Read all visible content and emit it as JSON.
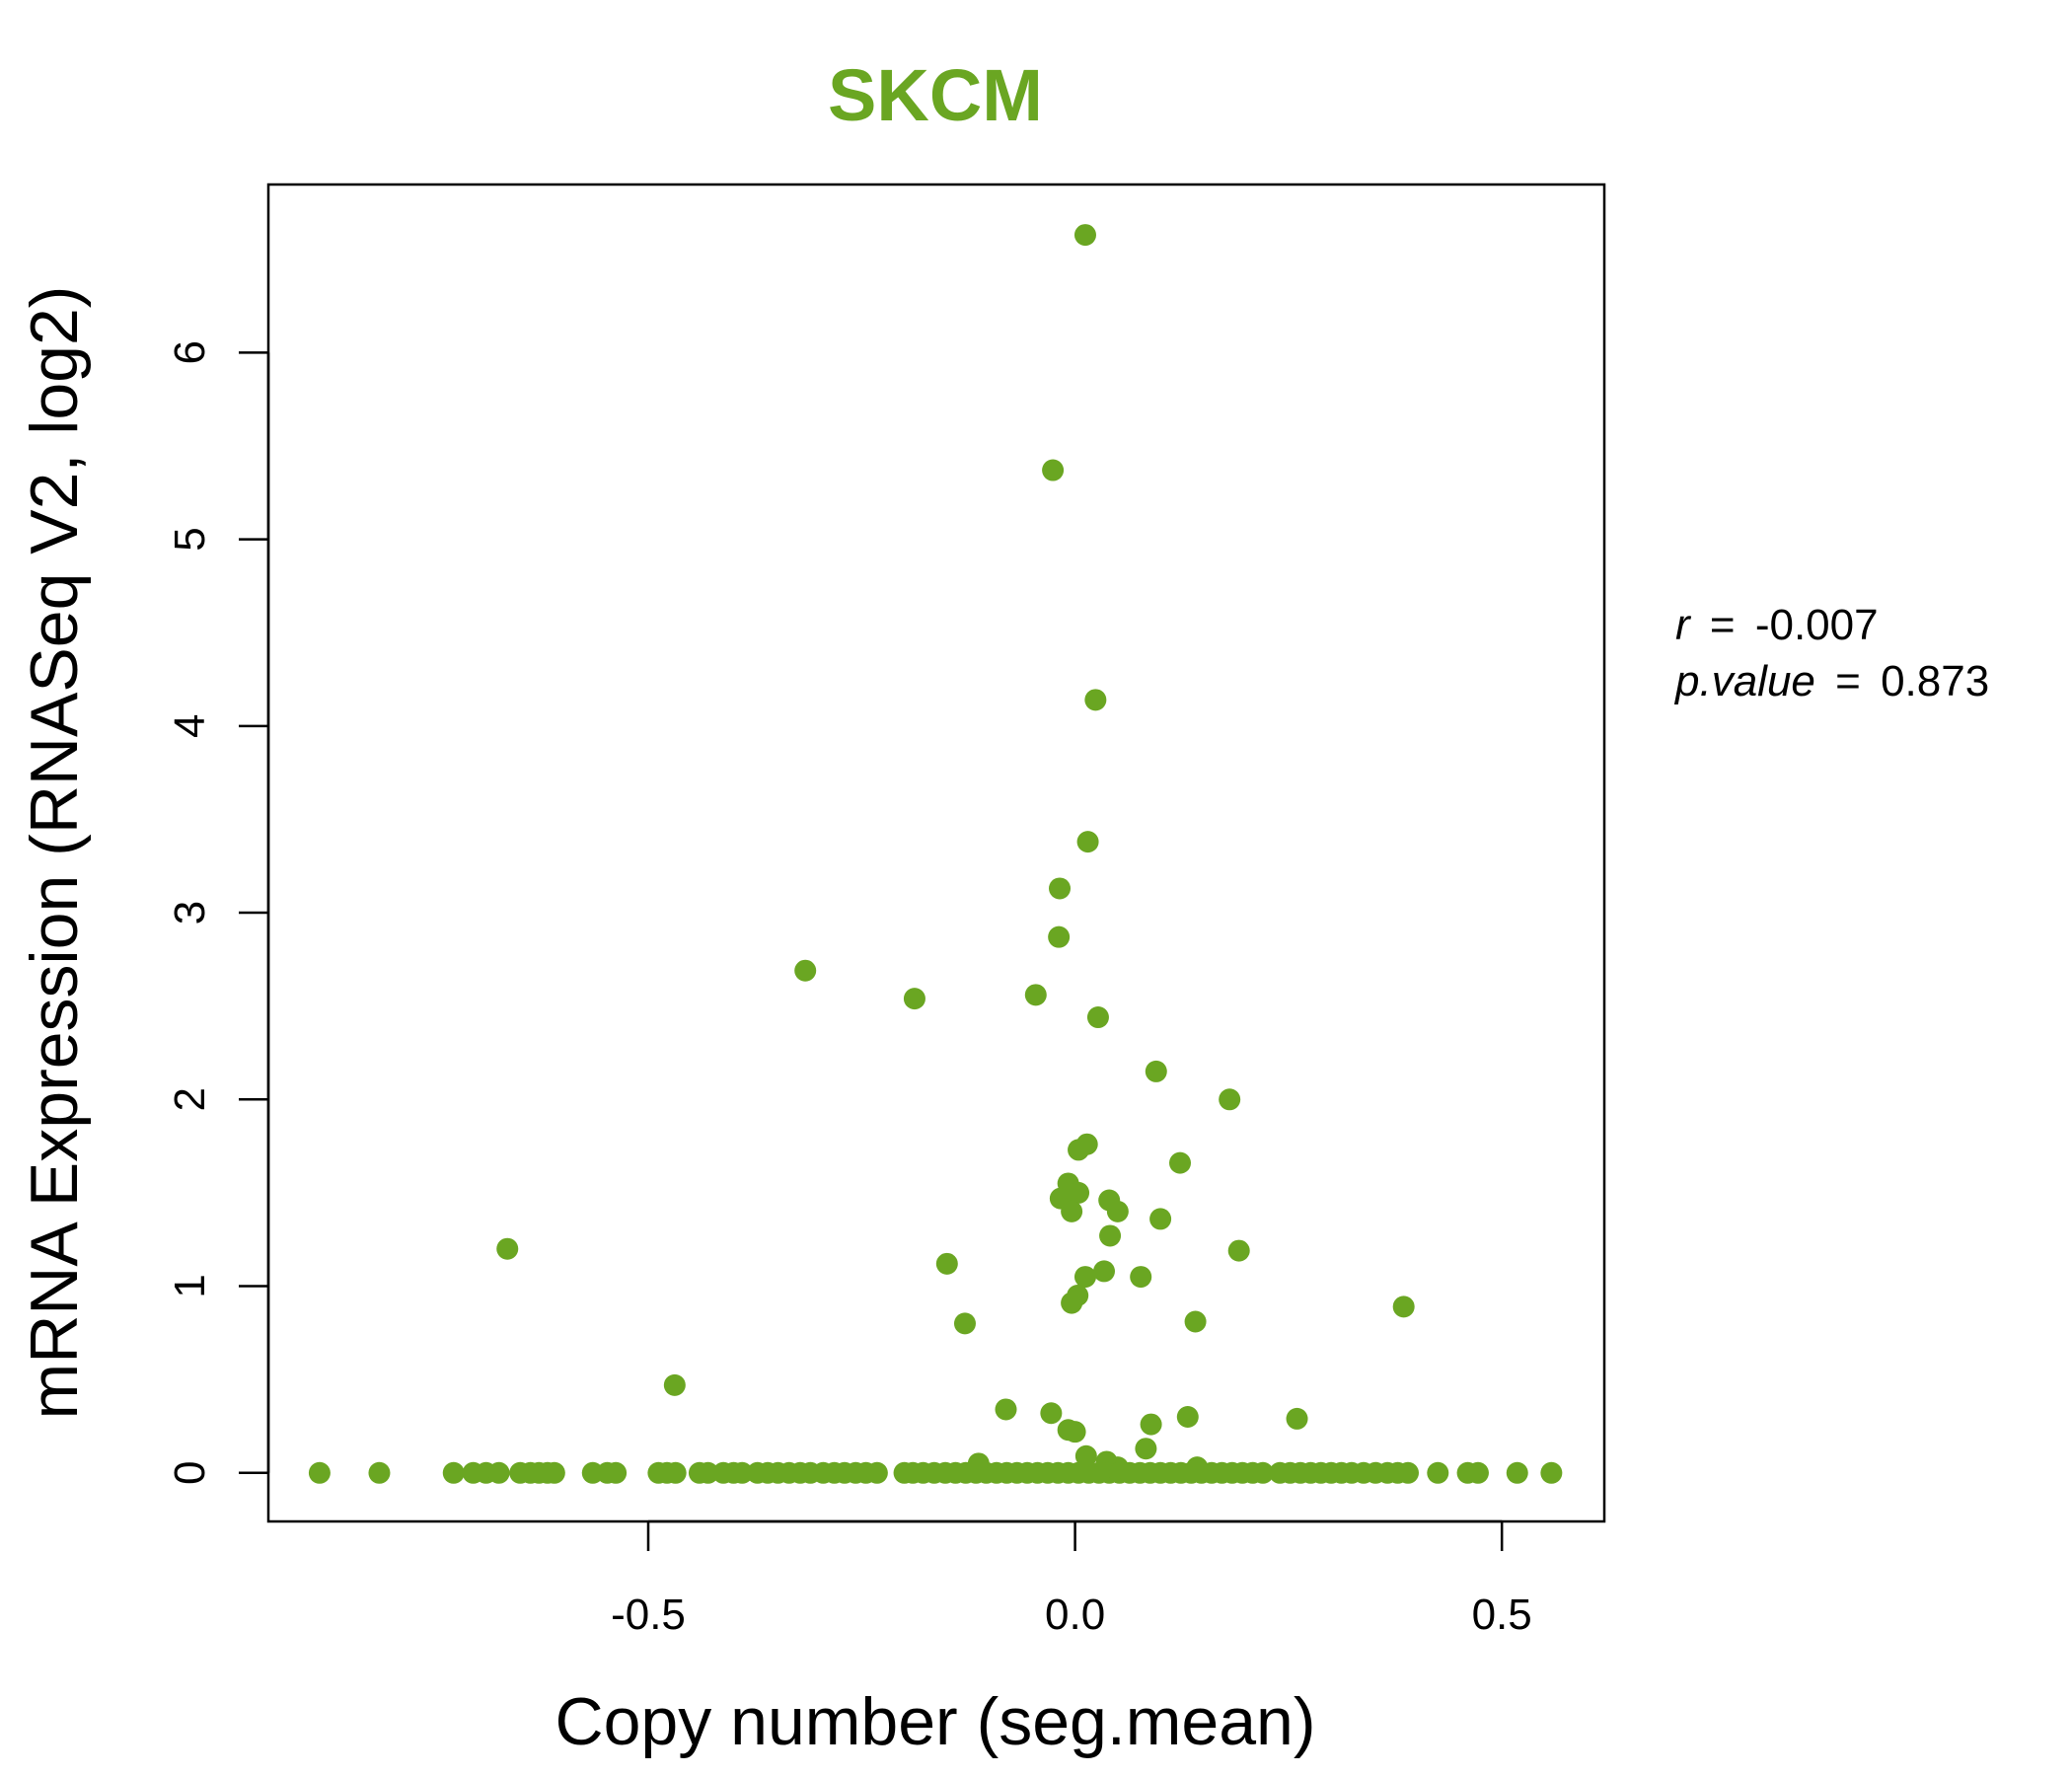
{
  "chart_data": {
    "type": "scatter",
    "title": "SKCM",
    "xlabel": "Copy number (seg.mean)",
    "ylabel": "mRNA Expression (RNASeq V2, log2)",
    "xlim": [
      -0.945,
      0.62
    ],
    "ylim": [
      -0.26,
      6.9
    ],
    "x_ticks": [
      -0.5,
      0.0,
      0.5
    ],
    "x_tick_labels": [
      "-0.5",
      "0.0",
      "0.5"
    ],
    "y_ticks": [
      0,
      1,
      2,
      3,
      4,
      5,
      6
    ],
    "y_tick_labels": [
      "0",
      "1",
      "2",
      "3",
      "4",
      "5",
      "6"
    ],
    "grid": false,
    "legend": "none",
    "point_color": "#6aa622",
    "annotation": {
      "r_label": "r",
      "r_value": "-0.007",
      "p_label": "p.value",
      "p_value": "0.873",
      "equals": "="
    },
    "points": [
      {
        "x": 0.012,
        "y": 6.63
      },
      {
        "x": -0.026,
        "y": 5.37
      },
      {
        "x": 0.024,
        "y": 4.14
      },
      {
        "x": 0.015,
        "y": 3.38
      },
      {
        "x": -0.018,
        "y": 3.13
      },
      {
        "x": -0.019,
        "y": 2.87
      },
      {
        "x": -0.316,
        "y": 2.69
      },
      {
        "x": -0.188,
        "y": 2.54
      },
      {
        "x": -0.046,
        "y": 2.56
      },
      {
        "x": 0.027,
        "y": 2.44
      },
      {
        "x": 0.095,
        "y": 2.15
      },
      {
        "x": 0.181,
        "y": 2.0
      },
      {
        "x": 0.004,
        "y": 1.73
      },
      {
        "x": 0.014,
        "y": 1.76
      },
      {
        "x": 0.123,
        "y": 1.66
      },
      {
        "x": -0.008,
        "y": 1.55
      },
      {
        "x": 0.004,
        "y": 1.5
      },
      {
        "x": -0.017,
        "y": 1.47
      },
      {
        "x": -0.004,
        "y": 1.4
      },
      {
        "x": 0.04,
        "y": 1.46
      },
      {
        "x": 0.05,
        "y": 1.4
      },
      {
        "x": 0.1,
        "y": 1.36
      },
      {
        "x": 0.041,
        "y": 1.27
      },
      {
        "x": -0.665,
        "y": 1.2
      },
      {
        "x": 0.192,
        "y": 1.19
      },
      {
        "x": -0.15,
        "y": 1.12
      },
      {
        "x": 0.034,
        "y": 1.08
      },
      {
        "x": 0.012,
        "y": 1.05
      },
      {
        "x": 0.077,
        "y": 1.05
      },
      {
        "x": 0.003,
        "y": 0.95
      },
      {
        "x": -0.004,
        "y": 0.91
      },
      {
        "x": 0.385,
        "y": 0.89
      },
      {
        "x": -0.129,
        "y": 0.8
      },
      {
        "x": 0.141,
        "y": 0.81
      },
      {
        "x": -0.469,
        "y": 0.47
      },
      {
        "x": -0.081,
        "y": 0.34
      },
      {
        "x": -0.028,
        "y": 0.32
      },
      {
        "x": 0.132,
        "y": 0.3
      },
      {
        "x": 0.26,
        "y": 0.29
      },
      {
        "x": 0.089,
        "y": 0.26
      },
      {
        "x": -0.008,
        "y": 0.23
      },
      {
        "x": 0.0,
        "y": 0.22
      },
      {
        "x": 0.083,
        "y": 0.13
      },
      {
        "x": 0.013,
        "y": 0.09
      },
      {
        "x": 0.037,
        "y": 0.06
      },
      {
        "x": 0.143,
        "y": 0.03
      },
      {
        "x": -0.113,
        "y": 0.05
      },
      {
        "x": 0.05,
        "y": 0.03
      },
      {
        "x": -0.885,
        "y": 0
      },
      {
        "x": -0.815,
        "y": 0
      },
      {
        "x": -0.728,
        "y": 0
      },
      {
        "x": -0.705,
        "y": 0
      },
      {
        "x": -0.69,
        "y": 0
      },
      {
        "x": -0.675,
        "y": 0
      },
      {
        "x": -0.65,
        "y": 0
      },
      {
        "x": -0.638,
        "y": 0
      },
      {
        "x": -0.628,
        "y": 0
      },
      {
        "x": -0.618,
        "y": 0
      },
      {
        "x": -0.61,
        "y": 0
      },
      {
        "x": -0.565,
        "y": 0
      },
      {
        "x": -0.548,
        "y": 0
      },
      {
        "x": -0.538,
        "y": 0
      },
      {
        "x": -0.488,
        "y": 0
      },
      {
        "x": -0.478,
        "y": 0
      },
      {
        "x": -0.468,
        "y": 0
      },
      {
        "x": -0.44,
        "y": 0
      },
      {
        "x": -0.43,
        "y": 0
      },
      {
        "x": -0.412,
        "y": 0
      },
      {
        "x": -0.4,
        "y": 0
      },
      {
        "x": -0.39,
        "y": 0
      },
      {
        "x": -0.372,
        "y": 0
      },
      {
        "x": -0.36,
        "y": 0
      },
      {
        "x": -0.348,
        "y": 0
      },
      {
        "x": -0.335,
        "y": 0
      },
      {
        "x": -0.322,
        "y": 0
      },
      {
        "x": -0.31,
        "y": 0
      },
      {
        "x": -0.295,
        "y": 0
      },
      {
        "x": -0.282,
        "y": 0
      },
      {
        "x": -0.27,
        "y": 0
      },
      {
        "x": -0.257,
        "y": 0
      },
      {
        "x": -0.245,
        "y": 0
      },
      {
        "x": -0.232,
        "y": 0
      },
      {
        "x": -0.2,
        "y": 0
      },
      {
        "x": -0.19,
        "y": 0
      },
      {
        "x": -0.178,
        "y": 0
      },
      {
        "x": -0.165,
        "y": 0
      },
      {
        "x": -0.152,
        "y": 0
      },
      {
        "x": -0.14,
        "y": 0
      },
      {
        "x": -0.128,
        "y": 0
      },
      {
        "x": -0.116,
        "y": 0
      },
      {
        "x": -0.104,
        "y": 0
      },
      {
        "x": -0.092,
        "y": 0
      },
      {
        "x": -0.08,
        "y": 0
      },
      {
        "x": -0.068,
        "y": 0
      },
      {
        "x": -0.056,
        "y": 0
      },
      {
        "x": -0.044,
        "y": 0
      },
      {
        "x": -0.032,
        "y": 0
      },
      {
        "x": -0.02,
        "y": 0
      },
      {
        "x": -0.008,
        "y": 0
      },
      {
        "x": 0.004,
        "y": 0
      },
      {
        "x": 0.016,
        "y": 0
      },
      {
        "x": 0.028,
        "y": 0
      },
      {
        "x": 0.04,
        "y": 0
      },
      {
        "x": 0.052,
        "y": 0
      },
      {
        "x": 0.064,
        "y": 0
      },
      {
        "x": 0.076,
        "y": 0
      },
      {
        "x": 0.088,
        "y": 0
      },
      {
        "x": 0.1,
        "y": 0
      },
      {
        "x": 0.112,
        "y": 0
      },
      {
        "x": 0.124,
        "y": 0
      },
      {
        "x": 0.136,
        "y": 0
      },
      {
        "x": 0.148,
        "y": 0
      },
      {
        "x": 0.16,
        "y": 0
      },
      {
        "x": 0.172,
        "y": 0
      },
      {
        "x": 0.184,
        "y": 0
      },
      {
        "x": 0.196,
        "y": 0
      },
      {
        "x": 0.208,
        "y": 0
      },
      {
        "x": 0.22,
        "y": 0
      },
      {
        "x": 0.24,
        "y": 0
      },
      {
        "x": 0.252,
        "y": 0
      },
      {
        "x": 0.264,
        "y": 0
      },
      {
        "x": 0.276,
        "y": 0
      },
      {
        "x": 0.288,
        "y": 0
      },
      {
        "x": 0.3,
        "y": 0
      },
      {
        "x": 0.312,
        "y": 0
      },
      {
        "x": 0.324,
        "y": 0
      },
      {
        "x": 0.338,
        "y": 0
      },
      {
        "x": 0.352,
        "y": 0
      },
      {
        "x": 0.366,
        "y": 0
      },
      {
        "x": 0.378,
        "y": 0
      },
      {
        "x": 0.39,
        "y": 0
      },
      {
        "x": 0.425,
        "y": 0
      },
      {
        "x": 0.46,
        "y": 0
      },
      {
        "x": 0.472,
        "y": 0
      },
      {
        "x": 0.518,
        "y": 0
      },
      {
        "x": 0.558,
        "y": 0
      }
    ]
  }
}
